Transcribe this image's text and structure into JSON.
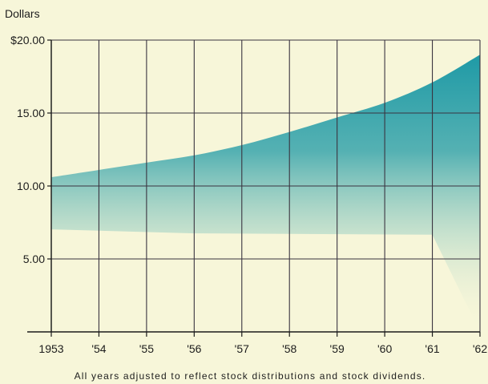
{
  "chart_data": {
    "type": "area",
    "ylabel": "Dollars",
    "x": [
      "1953",
      "'54",
      "'55",
      "'56",
      "'57",
      "'58",
      "'59",
      "'60",
      "'61",
      "'62"
    ],
    "values": [
      10.6,
      11.1,
      11.6,
      12.1,
      12.8,
      13.7,
      14.7,
      15.7,
      17.1,
      19.0
    ],
    "ylim": [
      0,
      20
    ],
    "yticks": [
      {
        "value": 20,
        "label": "$20.00"
      },
      {
        "value": 15,
        "label": "15.00"
      },
      {
        "value": 10,
        "label": "10.00"
      },
      {
        "value": 5,
        "label": "5.00"
      }
    ],
    "grid": true,
    "note": "All years adjusted to reflect stock distributions and stock dividends.",
    "colors": {
      "background": "#f7f6d9",
      "area_top": "#1f9aa6",
      "area_fade": "#f7f6d9",
      "grid": "#3a3440",
      "axis": "#1b1b1b"
    }
  }
}
